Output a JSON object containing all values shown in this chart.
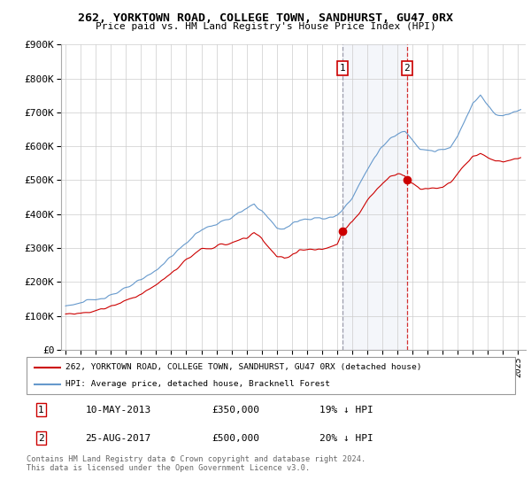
{
  "title": "262, YORKTOWN ROAD, COLLEGE TOWN, SANDHURST, GU47 0RX",
  "subtitle": "Price paid vs. HM Land Registry's House Price Index (HPI)",
  "ylim": [
    0,
    900000
  ],
  "yticks": [
    0,
    100000,
    200000,
    300000,
    400000,
    500000,
    600000,
    700000,
    800000,
    900000
  ],
  "ytick_labels": [
    "£0",
    "£100K",
    "£200K",
    "£300K",
    "£400K",
    "£500K",
    "£600K",
    "£700K",
    "£800K",
    "£900K"
  ],
  "hpi_color": "#6699cc",
  "price_color": "#cc0000",
  "sale1_x": 2013.37,
  "sale2_x": 2017.62,
  "sale1_price": 350000,
  "sale2_price": 500000,
  "sale1_date": "10-MAY-2013",
  "sale2_date": "25-AUG-2017",
  "sale1_hpi_text": "19% ↓ HPI",
  "sale2_hpi_text": "20% ↓ HPI",
  "legend1": "262, YORKTOWN ROAD, COLLEGE TOWN, SANDHURST, GU47 0RX (detached house)",
  "legend2": "HPI: Average price, detached house, Bracknell Forest",
  "footnote": "Contains HM Land Registry data © Crown copyright and database right 2024.\nThis data is licensed under the Open Government Licence v3.0.",
  "xlim_left": 1994.7,
  "xlim_right": 2025.5,
  "x_start_year": 1995,
  "x_end_year": 2025
}
